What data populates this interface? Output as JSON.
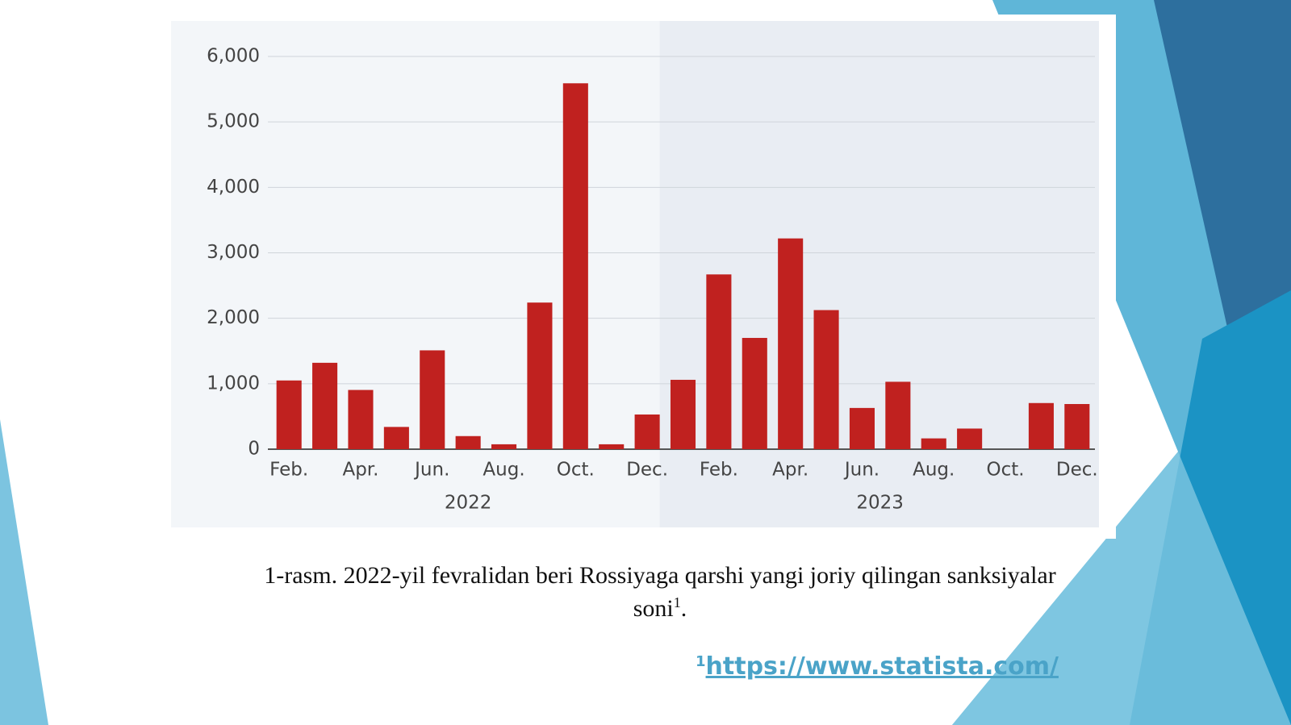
{
  "chart_data": {
    "type": "bar",
    "categories": [
      "Feb.",
      null,
      "Apr.",
      null,
      "Jun.",
      null,
      "Aug.",
      null,
      "Oct.",
      null,
      "Dec.",
      null,
      "Feb.",
      null,
      "Apr.",
      null,
      "Jun.",
      null,
      "Aug.",
      null,
      "Oct.",
      null,
      "Dec."
    ],
    "values": [
      1050,
      1320,
      905,
      340,
      1510,
      200,
      75,
      2240,
      5590,
      75,
      530,
      1060,
      2670,
      1700,
      3220,
      2125,
      630,
      1030,
      165,
      315,
      0,
      705,
      690
    ],
    "groups": [
      {
        "label": "2022",
        "months": 11
      },
      {
        "label": "2023",
        "months": 12
      }
    ],
    "color": "#c0211f",
    "ylim": [
      0,
      6000
    ],
    "yticks": [
      0,
      {
        "value": 1000,
        "label": "1,000"
      },
      {
        "value": 2000,
        "label": "2,000"
      },
      {
        "value": 3000,
        "label": "3,000"
      },
      {
        "value": 4000,
        "label": "4,000"
      },
      {
        "value": 5000,
        "label": "5,000"
      },
      {
        "value": 6000,
        "label": "6,000"
      }
    ],
    "grid": true
  },
  "caption": {
    "text": "1-rasm. 2022-yil fevralidan beri Rossiyaga qarshi yangi joriy qilingan sanksiyalar",
    "text2": "soni",
    "note_mark": "1",
    "end": "."
  },
  "footnote": {
    "mark": "1",
    "url": "https://www.statista.com/"
  }
}
